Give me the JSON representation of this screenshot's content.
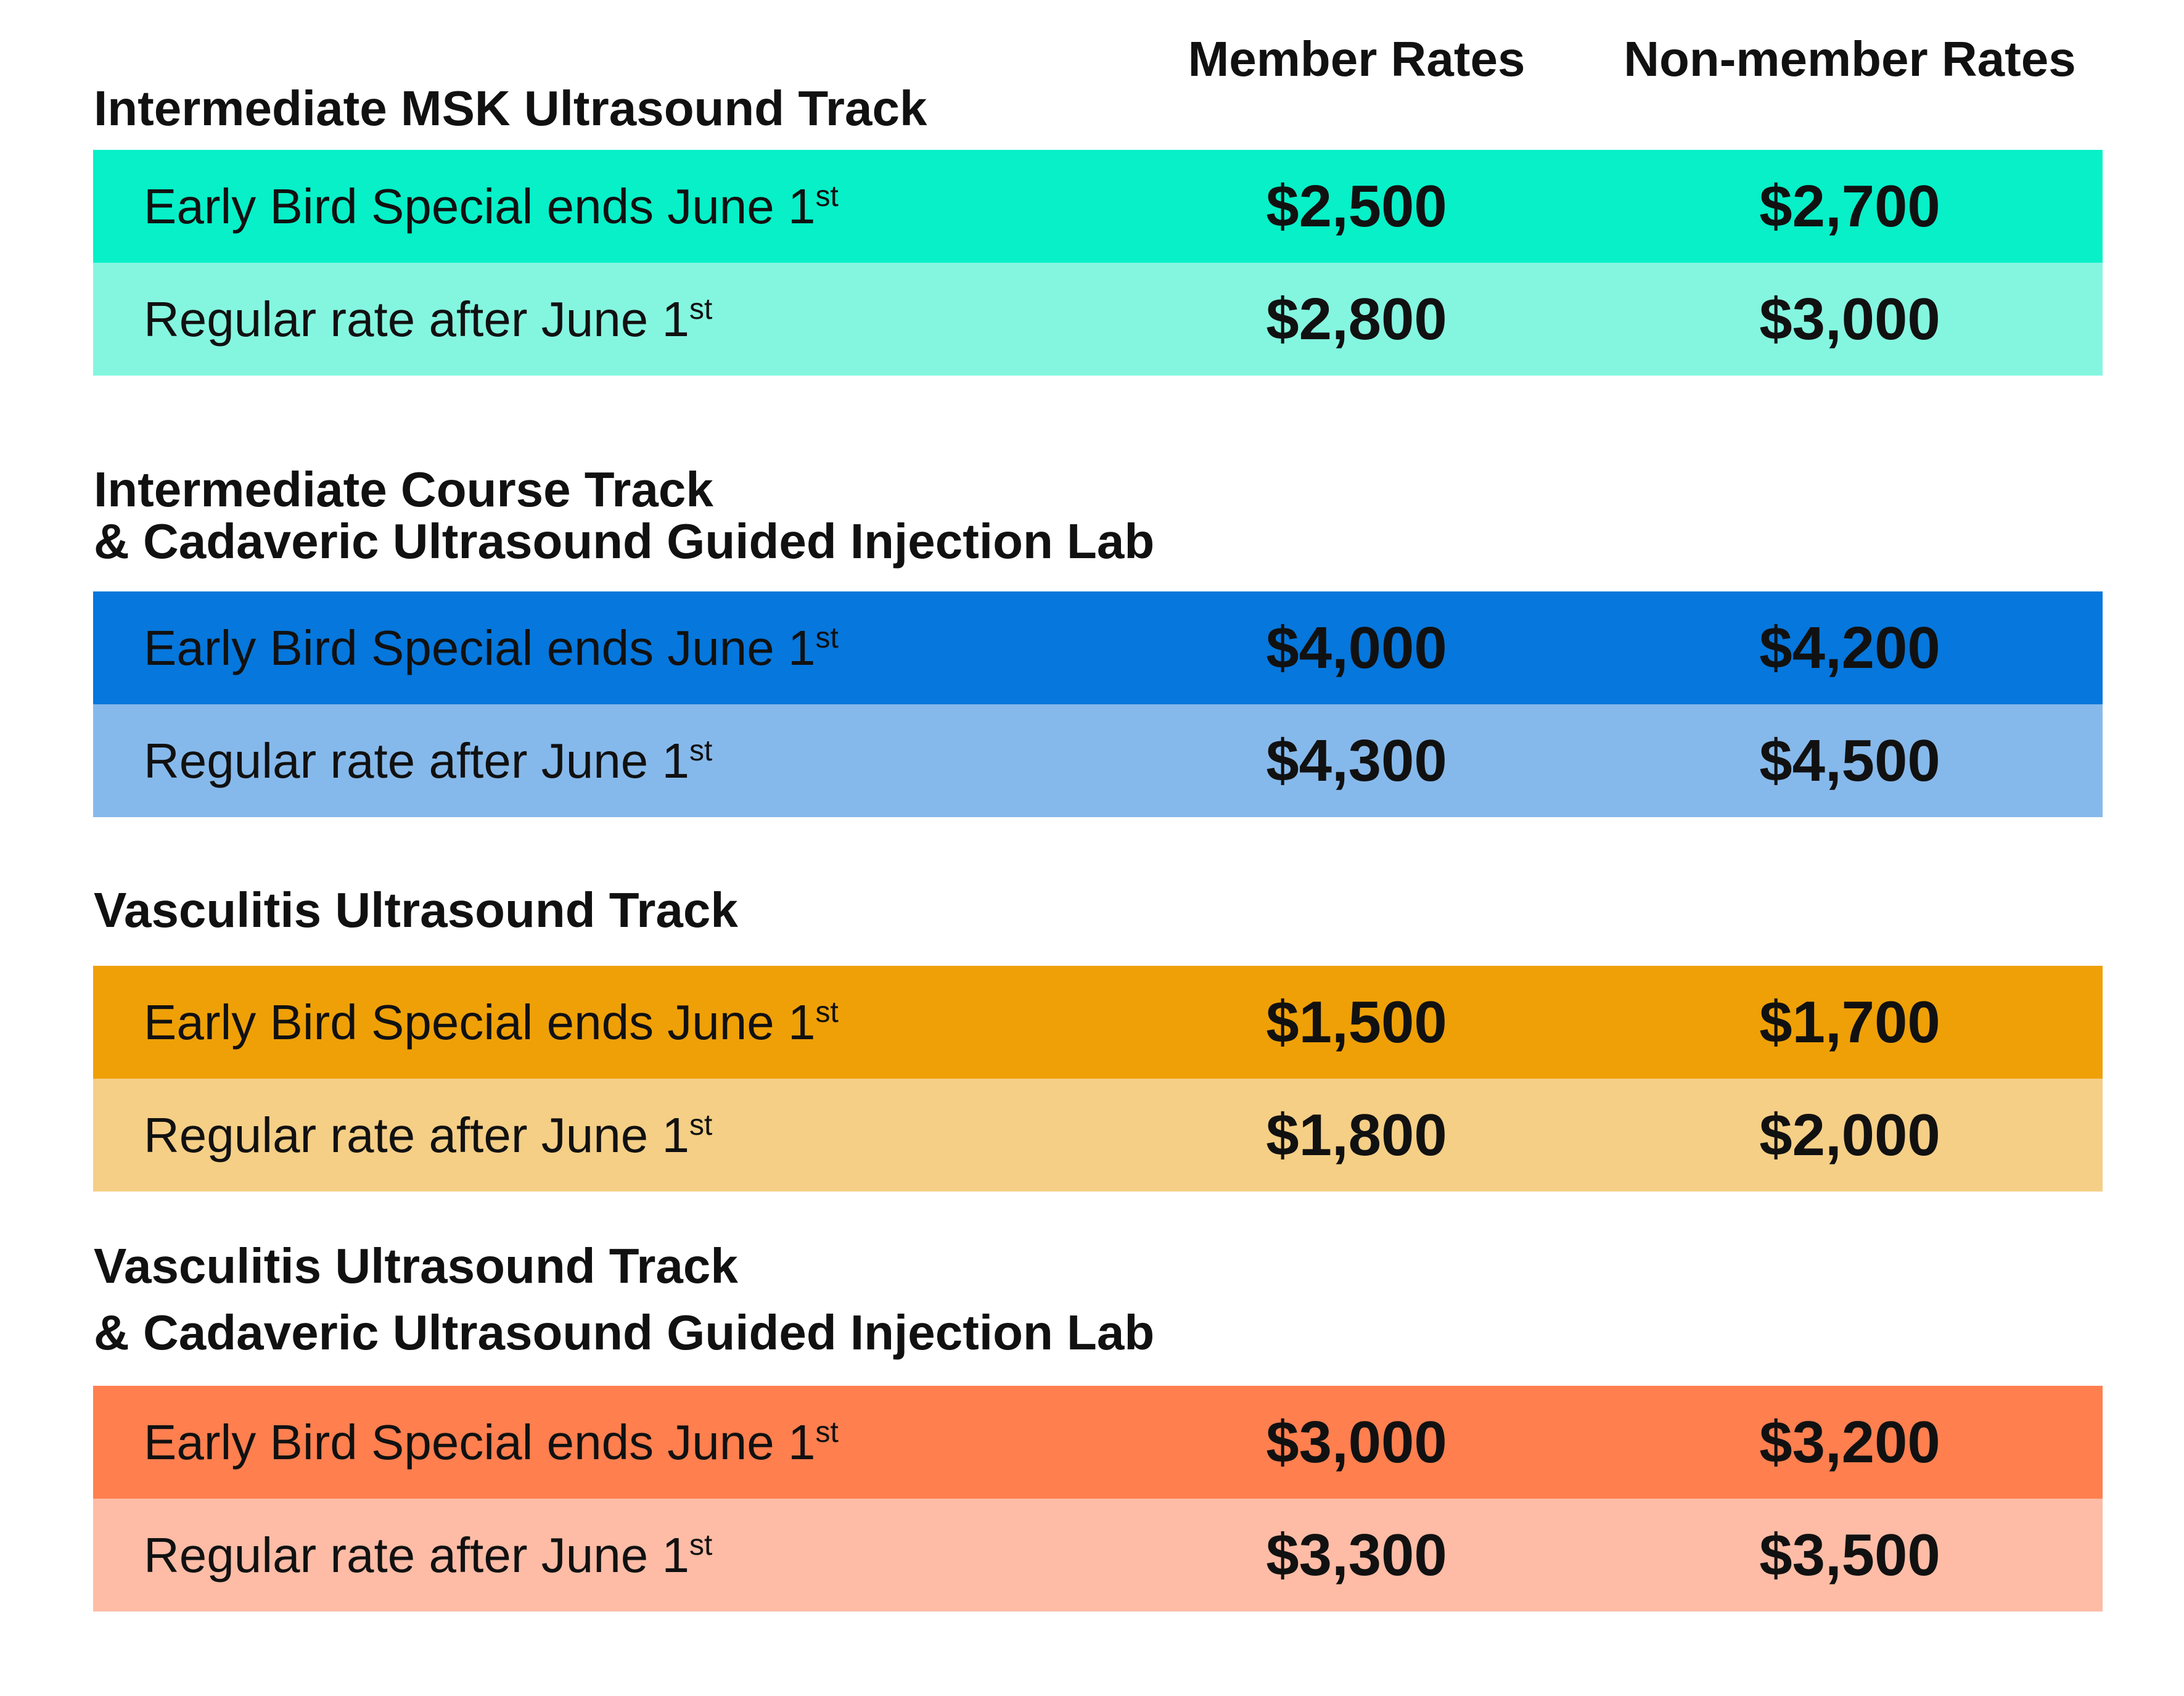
{
  "headers": {
    "member": "Member Rates",
    "nonmember": "Non-member Rates"
  },
  "sections": [
    {
      "title_lines": [
        "Intermediate MSK Ultrasound Track"
      ],
      "rows": [
        {
          "label": "Early Bird Special ends June 1",
          "sup": "st",
          "member": "$2,500",
          "nonmember": "$2,700",
          "color": "#07F0C8"
        },
        {
          "label": "Regular rate after June 1",
          "sup": "st",
          "member": "$2,800",
          "nonmember": "$3,000",
          "color": "#84F6E0"
        }
      ]
    },
    {
      "title_lines": [
        "Intermediate Course Track",
        "& Cadaveric Ultrasound Guided Injection Lab"
      ],
      "rows": [
        {
          "label": "Early Bird Special ends June 1",
          "sup": "st",
          "member": "$4,000",
          "nonmember": "$4,200",
          "color": "#0677DC"
        },
        {
          "label": "Regular rate after June 1",
          "sup": "st",
          "member": "$4,300",
          "nonmember": "$4,500",
          "color": "#86B9EB"
        }
      ]
    },
    {
      "title_lines": [
        "Vasculitis Ultrasound Track"
      ],
      "rows": [
        {
          "label": "Early Bird Special ends June 1",
          "sup": "st",
          "member": "$1,500",
          "nonmember": "$1,700",
          "color": "#EFA007"
        },
        {
          "label": "Regular rate after June 1",
          "sup": "st",
          "member": "$1,800",
          "nonmember": "$2,000",
          "color": "#F5CF86"
        }
      ]
    },
    {
      "title_lines": [
        "Vasculitis Ultrasound Track",
        "& Cadaveric Ultrasound Guided Injection Lab"
      ],
      "rows": [
        {
          "label": "Early Bird Special ends June 1",
          "sup": "st",
          "member": "$3,000",
          "nonmember": "$3,200",
          "color": "#FF7F4F"
        },
        {
          "label": "Regular rate after June 1",
          "sup": "st",
          "member": "$3,300",
          "nonmember": "$3,500",
          "color": "#FEBCA6"
        }
      ]
    }
  ]
}
